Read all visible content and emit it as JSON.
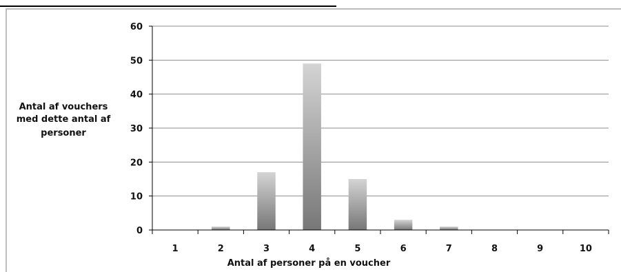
{
  "chart_data": {
    "type": "bar",
    "title": "",
    "categories": [
      "1",
      "2",
      "3",
      "4",
      "5",
      "6",
      "7",
      "8",
      "9",
      "10"
    ],
    "values": [
      0,
      1,
      17,
      49,
      15,
      3,
      1,
      0,
      0,
      0
    ],
    "xlabel": "Antal af personer på en voucher",
    "ylabel_lines": [
      "Antal af vouchers",
      "med dette antal af",
      "personer"
    ],
    "ylim": [
      0,
      60
    ],
    "yticks": [
      0,
      10,
      20,
      30,
      40,
      50,
      60
    ],
    "grid": true,
    "legend": "none",
    "colors": {
      "bar_light": "#d4d4d4",
      "bar_dark": "#777777",
      "grid": "#8c8c8c"
    }
  }
}
